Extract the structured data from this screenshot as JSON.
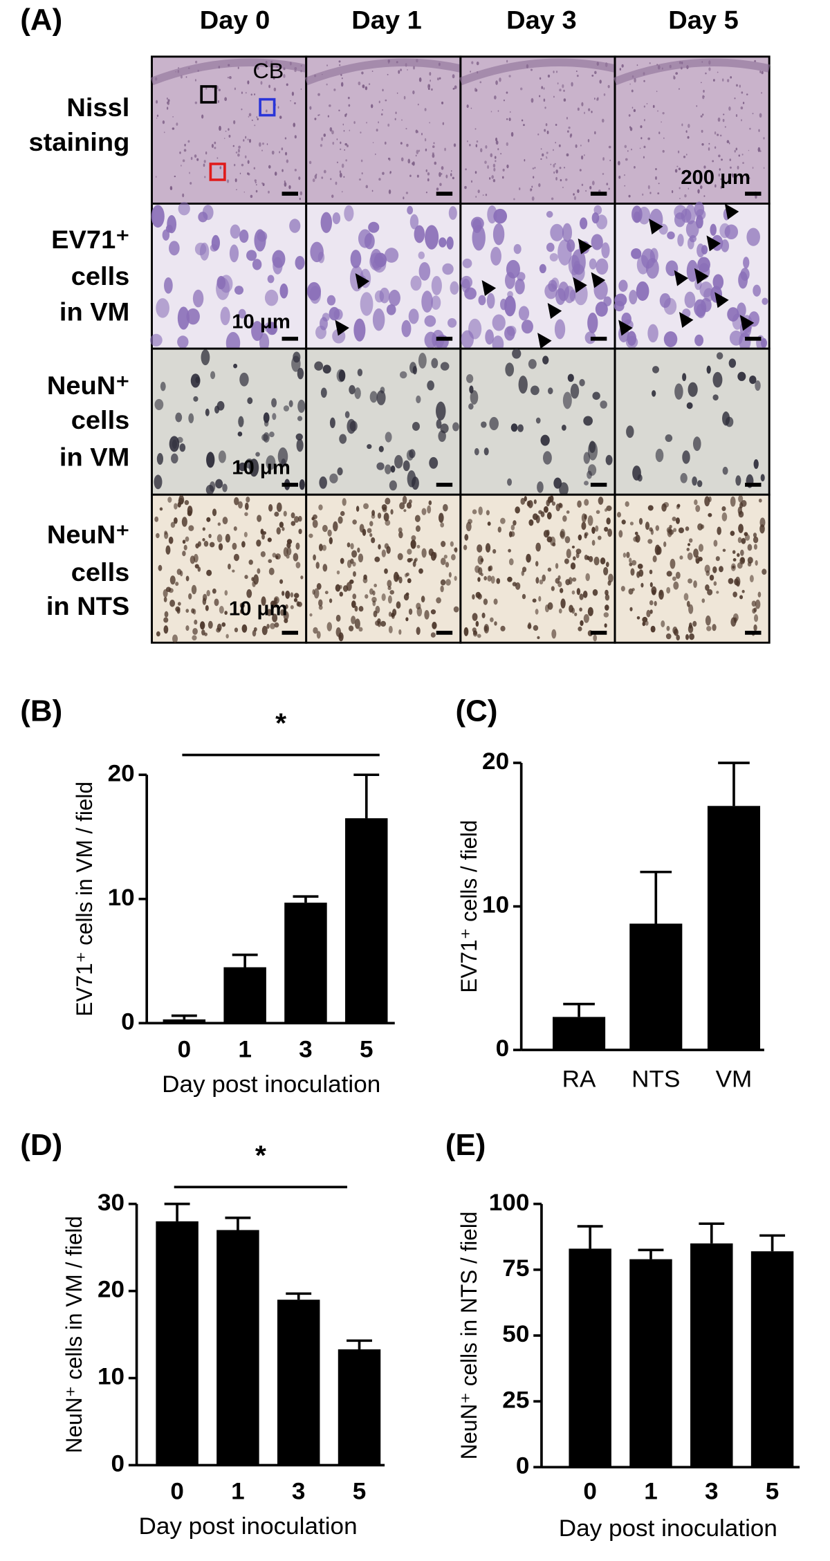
{
  "panel_a": {
    "label": "(A)",
    "columns": [
      "Day 0",
      "Day 1",
      "Day 3",
      "Day 5"
    ],
    "rows": [
      [
        "Nissl",
        "staining"
      ],
      [
        "EV71⁺",
        "cells",
        "in VM"
      ],
      [
        "NeuN⁺",
        "cells",
        "in VM"
      ],
      [
        "NeuN⁺",
        "cells",
        "in NTS"
      ]
    ],
    "annotations": [
      "CB",
      "200 μm",
      "10 μm",
      "10 μm",
      "10 μm"
    ]
  },
  "chart_data": [
    {
      "type": "bar",
      "panel": "(B)",
      "annotation": "*",
      "categories": [
        "0",
        "1",
        "3",
        "5"
      ],
      "values": [
        0.3,
        4.5,
        9.7,
        16.5
      ],
      "errors": [
        0.3,
        1.0,
        0.5,
        3.5
      ],
      "color": "#000000",
      "ylim": [
        0,
        20
      ],
      "yticks": [
        0,
        10,
        20
      ],
      "xlabel": "Day post inoculation",
      "ylabel": "EV71⁺ cells  in VM / field"
    },
    {
      "type": "bar",
      "panel": "(C)",
      "categories": [
        "RA",
        "NTS",
        "VM"
      ],
      "values": [
        2.3,
        8.8,
        17
      ],
      "errors": [
        0.9,
        3.6,
        3.0
      ],
      "color": "#000000",
      "ylim": [
        0,
        20
      ],
      "yticks": [
        0,
        10,
        20
      ],
      "ylabel": "EV71⁺ cells / field"
    },
    {
      "type": "bar",
      "panel": "(D)",
      "annotation": "*",
      "categories": [
        "0",
        "1",
        "3",
        "5"
      ],
      "values": [
        28,
        27,
        19,
        13.3
      ],
      "errors": [
        2,
        1.4,
        0.7,
        1.0
      ],
      "color": "#000000",
      "ylim": [
        0,
        30
      ],
      "yticks": [
        0,
        10,
        20,
        30
      ],
      "xlabel": "Day post inoculation",
      "ylabel": "NeuN⁺ cells in VM / field"
    },
    {
      "type": "bar",
      "panel": "(E)",
      "categories": [
        "0",
        "1",
        "3",
        "5"
      ],
      "values": [
        83,
        79,
        85,
        82
      ],
      "errors": [
        8.5,
        3.5,
        7.5,
        6
      ],
      "color": "#000000",
      "ylim": [
        0,
        100
      ],
      "yticks": [
        0,
        25,
        50,
        75,
        100
      ],
      "xlabel": "Day post inoculation",
      "ylabel": "NeuN⁺ cells in NTS / field"
    }
  ]
}
